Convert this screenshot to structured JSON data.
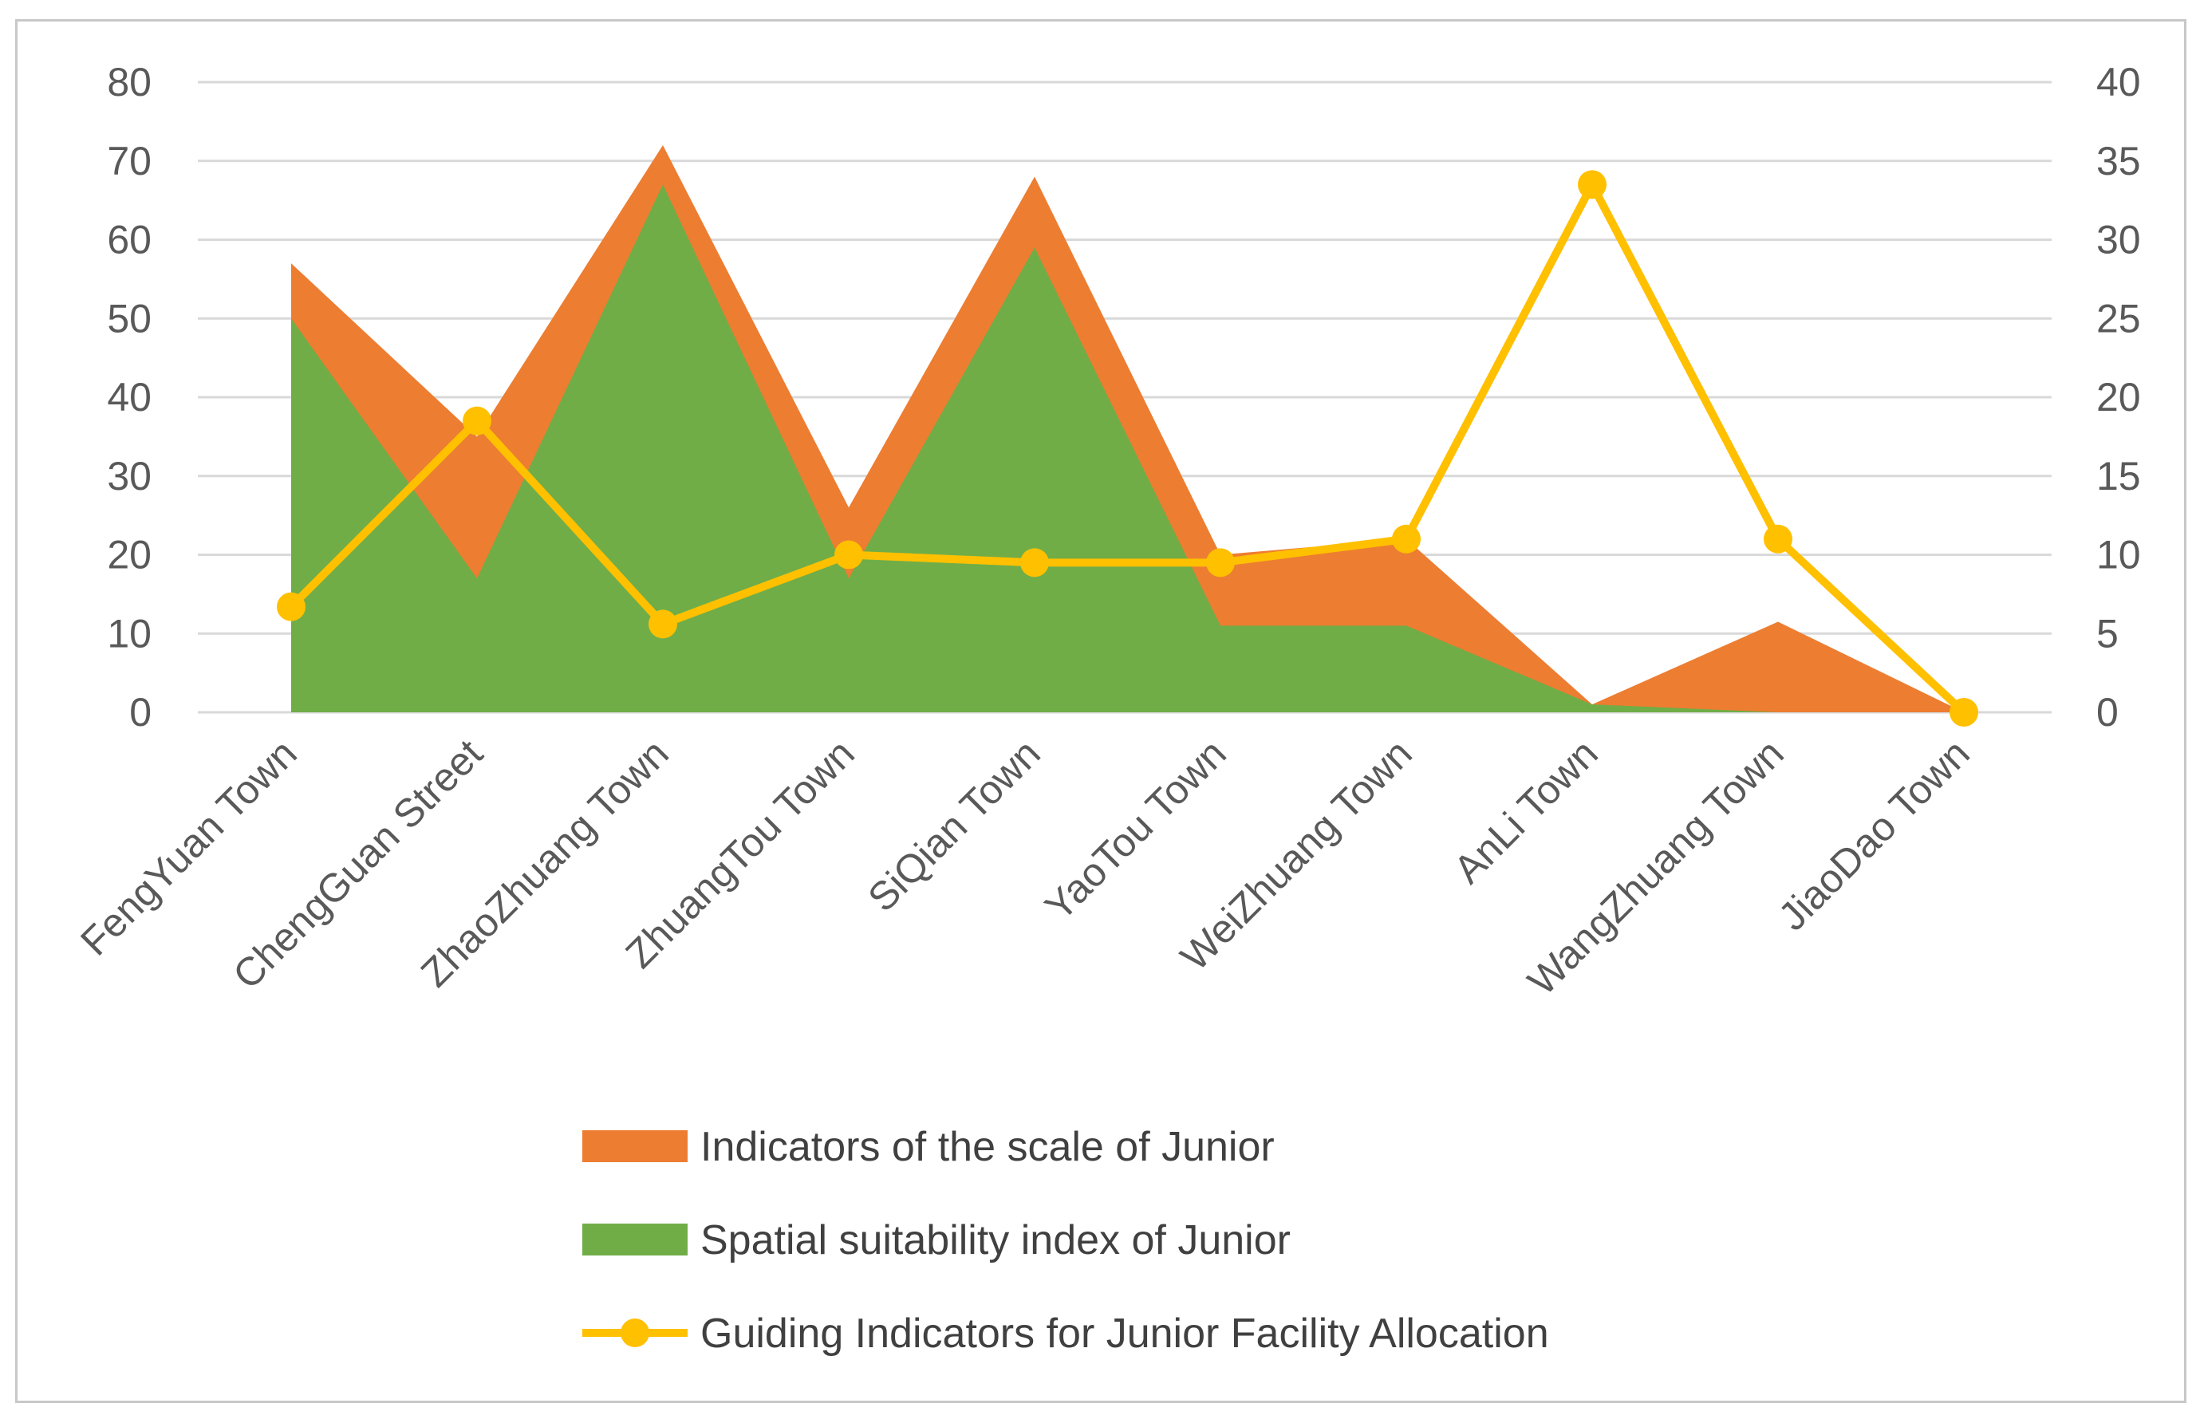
{
  "chart_data": {
    "type": "area",
    "title": "",
    "xlabel": "",
    "ylabel": "",
    "categories": [
      "FengYuan Town",
      "ChengGuan Street",
      "ZhaoZhuang Town",
      "ZhuangTou Town",
      "SiQian Town",
      "YaoTou Town",
      "WeiZhuang Town",
      "AnLi Town",
      "WangZhuang Town",
      "JiaoDao Town"
    ],
    "ylim": [
      0,
      80
    ],
    "y_ticks": [
      0,
      10,
      20,
      30,
      40,
      50,
      60,
      70,
      80
    ],
    "y2lim": [
      0,
      40
    ],
    "y2_ticks": [
      0,
      5,
      10,
      15,
      20,
      25,
      30,
      35,
      40
    ],
    "grid": true,
    "legend_position": "bottom",
    "series": [
      {
        "name": "Indicators of the scale of Junior",
        "type": "area",
        "axis": "left",
        "color": "#ED7D31",
        "values": [
          57,
          35,
          72,
          26,
          68,
          20,
          22,
          1,
          11.5,
          0
        ]
      },
      {
        "name": "Spatial suitability index of Junior",
        "type": "area",
        "axis": "left",
        "color": "#70AD47",
        "values": [
          50,
          17,
          67,
          17,
          59,
          11,
          11,
          1,
          0,
          0
        ]
      },
      {
        "name": "Guiding Indicators for Junior Facility Allocation",
        "type": "line",
        "axis": "right",
        "color": "#FFC000",
        "values": [
          6.7,
          18.5,
          5.6,
          10,
          9.5,
          9.5,
          11,
          33.5,
          11,
          0
        ]
      }
    ]
  }
}
